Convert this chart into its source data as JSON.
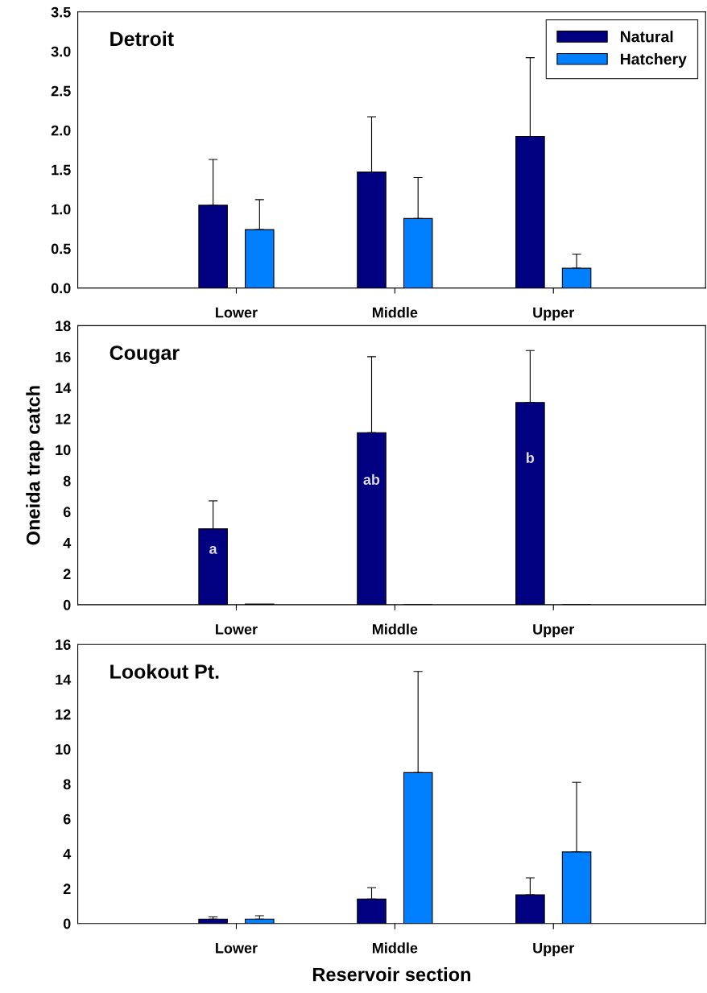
{
  "chart_data": [
    {
      "type": "bar",
      "title": "Detroit",
      "categories": [
        "Lower",
        "Middle",
        "Upper"
      ],
      "ylim": [
        0,
        3.5
      ],
      "yticks": [
        {
          "value": 0,
          "label": "0.0"
        },
        {
          "value": 0.5,
          "label": "0.5"
        },
        {
          "value": 1,
          "label": "1.0"
        },
        {
          "value": 1.5,
          "label": "1.5"
        },
        {
          "value": 2,
          "label": "2.0"
        },
        {
          "value": 2.5,
          "label": "2.5"
        },
        {
          "value": 3,
          "label": "3.0"
        },
        {
          "value": 3.5,
          "label": "3.5"
        }
      ],
      "legend": "top right",
      "grid": false,
      "series": [
        {
          "name": "Natural",
          "color": "#000080",
          "values": [
            1.05,
            1.47,
            1.92
          ],
          "errors": [
            [
              1.05,
              1.63
            ],
            [
              1.47,
              2.17
            ],
            [
              1.92,
              2.92
            ]
          ]
        },
        {
          "name": "Hatchery",
          "color": "#0080ff",
          "values": [
            0.74,
            0.88,
            0.25
          ],
          "errors": [
            [
              0.74,
              1.12
            ],
            [
              0.88,
              1.4
            ],
            [
              0.25,
              0.43
            ]
          ]
        }
      ]
    },
    {
      "type": "bar",
      "title": "Cougar",
      "ylabel": "Oneida trap catch",
      "categories": [
        "Lower",
        "Middle",
        "Upper"
      ],
      "ylim": [
        0,
        18
      ],
      "yticks": [
        0,
        2,
        4,
        6,
        8,
        10,
        12,
        14,
        16,
        18
      ],
      "grid": false,
      "annotations": [
        "a",
        "ab",
        "b"
      ],
      "series": [
        {
          "color": "#000080",
          "values": [
            4.9,
            11.1,
            13.05
          ],
          "errors": [
            [
              4.9,
              6.7
            ],
            [
              11.1,
              16.0
            ],
            [
              13.05,
              16.4
            ]
          ]
        },
        {
          "color": "#0080ff",
          "values": [
            0.05,
            0,
            0
          ],
          "errors": [
            null,
            null,
            null
          ]
        }
      ]
    },
    {
      "type": "bar",
      "title": "Lookout Pt.",
      "xlabel": "Reservoir section",
      "categories": [
        "Lower",
        "Middle",
        "Upper"
      ],
      "ylim": [
        0,
        16
      ],
      "yticks": [
        0,
        2,
        4,
        6,
        8,
        10,
        12,
        14,
        16
      ],
      "grid": false,
      "series": [
        {
          "color": "#000080",
          "values": [
            0.25,
            1.4,
            1.65
          ],
          "errors": [
            [
              0.25,
              0.38
            ],
            [
              1.4,
              2.05
            ],
            [
              1.65,
              2.62
            ]
          ]
        },
        {
          "color": "#0080ff",
          "values": [
            0.25,
            8.65,
            4.1
          ],
          "errors": [
            [
              0.25,
              0.45
            ],
            [
              8.65,
              14.45
            ],
            [
              4.1,
              8.1
            ]
          ]
        }
      ]
    }
  ]
}
